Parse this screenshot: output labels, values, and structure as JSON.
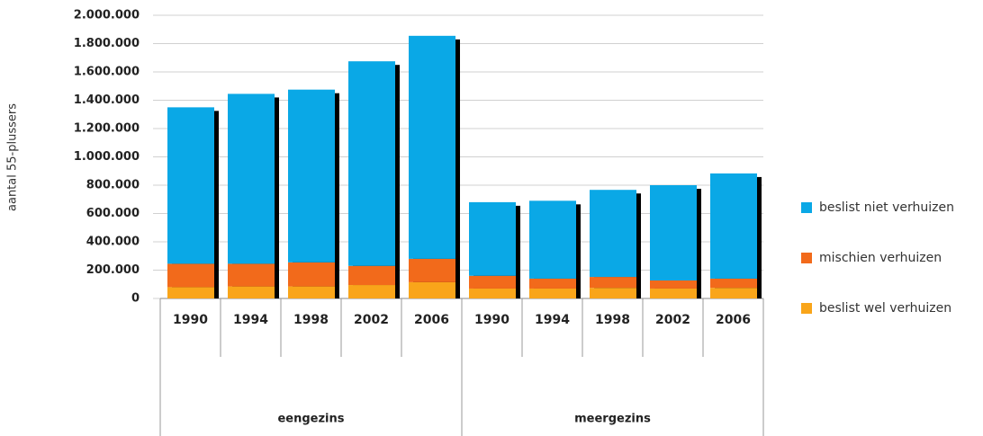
{
  "chart_data": {
    "type": "stacked_bar",
    "y_label": "aantal 55-plussers",
    "groups": [
      "eengezins",
      "meergezins"
    ],
    "categories": [
      "1990",
      "1994",
      "1998",
      "2002",
      "2006",
      "1990",
      "1994",
      "1998",
      "2002",
      "2006"
    ],
    "series": [
      {
        "name": "beslist wel verhuizen",
        "color": "#f9a51a",
        "values": [
          80000,
          85000,
          85000,
          95000,
          115000,
          70000,
          70000,
          75000,
          70000,
          75000
        ]
      },
      {
        "name": "mischien verhuizen",
        "color": "#f26a1b",
        "values": [
          165000,
          160000,
          170000,
          135000,
          165000,
          90000,
          70000,
          77000,
          57000,
          65000
        ]
      },
      {
        "name": "beslist niet verhuizen",
        "color": "#0aa8e6",
        "values": [
          1105000,
          1200000,
          1220000,
          1445000,
          1575000,
          520000,
          550000,
          615000,
          673000,
          743000
        ]
      }
    ],
    "ylim": [
      0,
      2000000
    ],
    "yticks": [
      0,
      {
        "value": 200000,
        "label": "200.000"
      },
      {
        "value": 400000,
        "label": "400.000"
      },
      {
        "value": 600000,
        "label": "600.000"
      },
      {
        "value": 800000,
        "label": "800.000"
      },
      {
        "value": 1000000,
        "label": "1.000.000"
      },
      {
        "value": 1200000,
        "label": "1.200.000"
      },
      {
        "value": 1400000,
        "label": "1.400.000"
      },
      {
        "value": 1600000,
        "label": "1.600.000"
      },
      {
        "value": 1800000,
        "label": "1.800.000"
      },
      {
        "value": 2000000,
        "label": "2.000.000"
      }
    ],
    "grid": true
  }
}
